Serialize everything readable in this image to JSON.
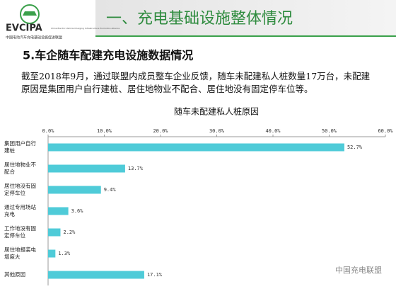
{
  "logo": {
    "name": "EVCIPA",
    "english": "China Electric Vehicle Charging Infrastructure Promotion Alliance",
    "chinese": "中国电动汽车充电基础设施促进联盟"
  },
  "header": {
    "title": "一、充电基础设施整体情况"
  },
  "section": {
    "title": "5.车企随车配建充电设施数据情况"
  },
  "paragraph": "截至2018年9月，通过联盟内成员整车企业反馈，随车未配建私人桩数量17万台，未配建原因是集团用户自行建桩、居住地物业不配合、居住地没有固定停车位等。",
  "watermark": "中国充电联盟",
  "chart_data": {
    "type": "hbar",
    "title": "随车未配建私人桩原因",
    "categories": [
      "集团用户自行建桩",
      "居住地物业不配合",
      "居住地没有固定停车位",
      "通过专用场站充电",
      "工作地没有固定停车位",
      "居住地报装电增度大",
      "其他原因"
    ],
    "values": [
      52.7,
      13.7,
      9.4,
      3.6,
      2.2,
      1.3,
      17.1
    ],
    "value_labels": [
      "52.7%",
      "13.7%",
      "9.4%",
      "3.6%",
      "2.2%",
      "1.3%",
      "17.1%"
    ],
    "color": "#4fcbd8",
    "xlim": [
      0,
      60
    ],
    "xticks": [
      {
        "value": 0,
        "label": "0.0%"
      },
      {
        "value": 10,
        "label": "10.0%"
      },
      {
        "value": 20,
        "label": "20.0%"
      },
      {
        "value": 30,
        "label": "30.0%"
      },
      {
        "value": 40,
        "label": "40.0%"
      },
      {
        "value": 50,
        "label": "50.0%"
      },
      {
        "value": 60,
        "label": "60.0%"
      }
    ],
    "grid": false
  }
}
